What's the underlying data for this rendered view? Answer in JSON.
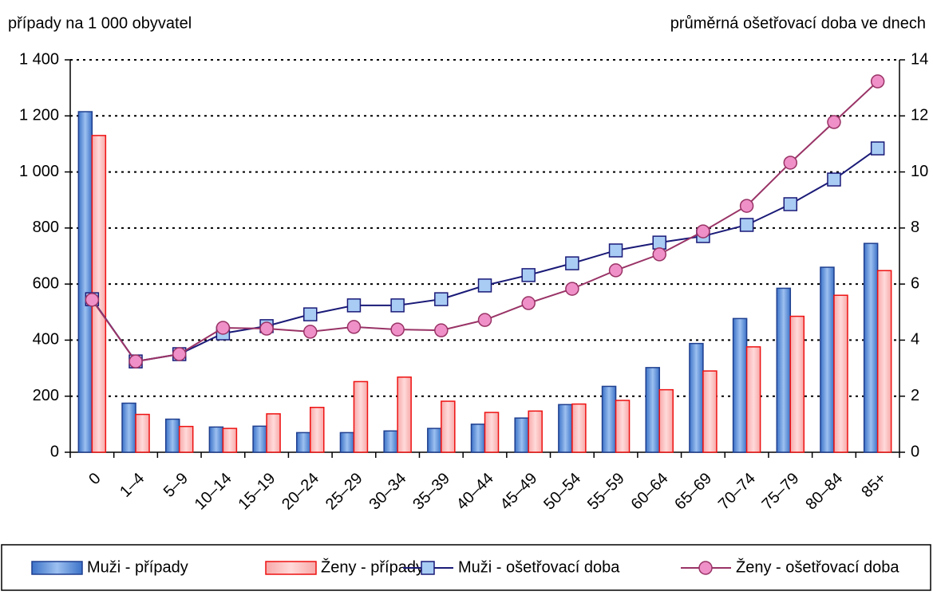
{
  "chart_data": {
    "type": "bar_line",
    "y_label": "případy na 1 000 obyvatel",
    "y2_label": "průměrná ošetřovací doba ve dnech",
    "categories": [
      "0",
      "1–4",
      "5–9",
      "10–14",
      "15–19",
      "20–24",
      "25–29",
      "30–34",
      "35–39",
      "40–44",
      "45–49",
      "50–54",
      "55–59",
      "60–64",
      "65–69",
      "70–74",
      "75–79",
      "80–84",
      "85+"
    ],
    "series": [
      {
        "name": "Muži - případy",
        "type": "bar",
        "color": "#3c72c8",
        "values": [
          1215,
          175,
          118,
          90,
          93,
          70,
          70,
          76,
          85,
          100,
          122,
          170,
          235,
          302,
          388,
          477,
          585,
          660,
          745
        ]
      },
      {
        "name": "Ženy - případy",
        "type": "bar",
        "color": "#f8a8a8",
        "values": [
          1130,
          135,
          92,
          85,
          137,
          160,
          252,
          268,
          182,
          142,
          147,
          172,
          185,
          223,
          290,
          376,
          485,
          560,
          648
        ]
      },
      {
        "name": "Muži - ošetřovací doba",
        "type": "line",
        "axis": "y2",
        "color": "#1a1a78",
        "marker": "square",
        "values": [
          5.46,
          3.24,
          3.5,
          4.24,
          4.5,
          4.92,
          5.24,
          5.24,
          5.46,
          5.95,
          6.32,
          6.74,
          7.2,
          7.48,
          7.71,
          8.11,
          8.85,
          9.73,
          10.84
        ]
      },
      {
        "name": "Ženy - ošetřovací doba",
        "type": "line",
        "axis": "y2",
        "color": "#993366",
        "marker": "circle",
        "values": [
          5.44,
          3.24,
          3.5,
          4.44,
          4.41,
          4.3,
          4.47,
          4.38,
          4.35,
          4.72,
          5.32,
          5.83,
          6.49,
          7.06,
          7.88,
          8.79,
          10.33,
          11.78,
          13.23
        ]
      }
    ],
    "ylim": [
      0,
      1400
    ],
    "yticks": [
      0,
      200,
      400,
      600,
      800,
      {
        "value": 1000,
        "label": "1 000"
      },
      {
        "value": 1200,
        "label": "1 200"
      },
      {
        "value": 1400,
        "label": "1 400"
      }
    ],
    "y2lim": [
      0,
      14
    ],
    "y2ticks": [
      0,
      2,
      4,
      6,
      8,
      10,
      12,
      14
    ],
    "grid": true,
    "legend": "bottom"
  }
}
